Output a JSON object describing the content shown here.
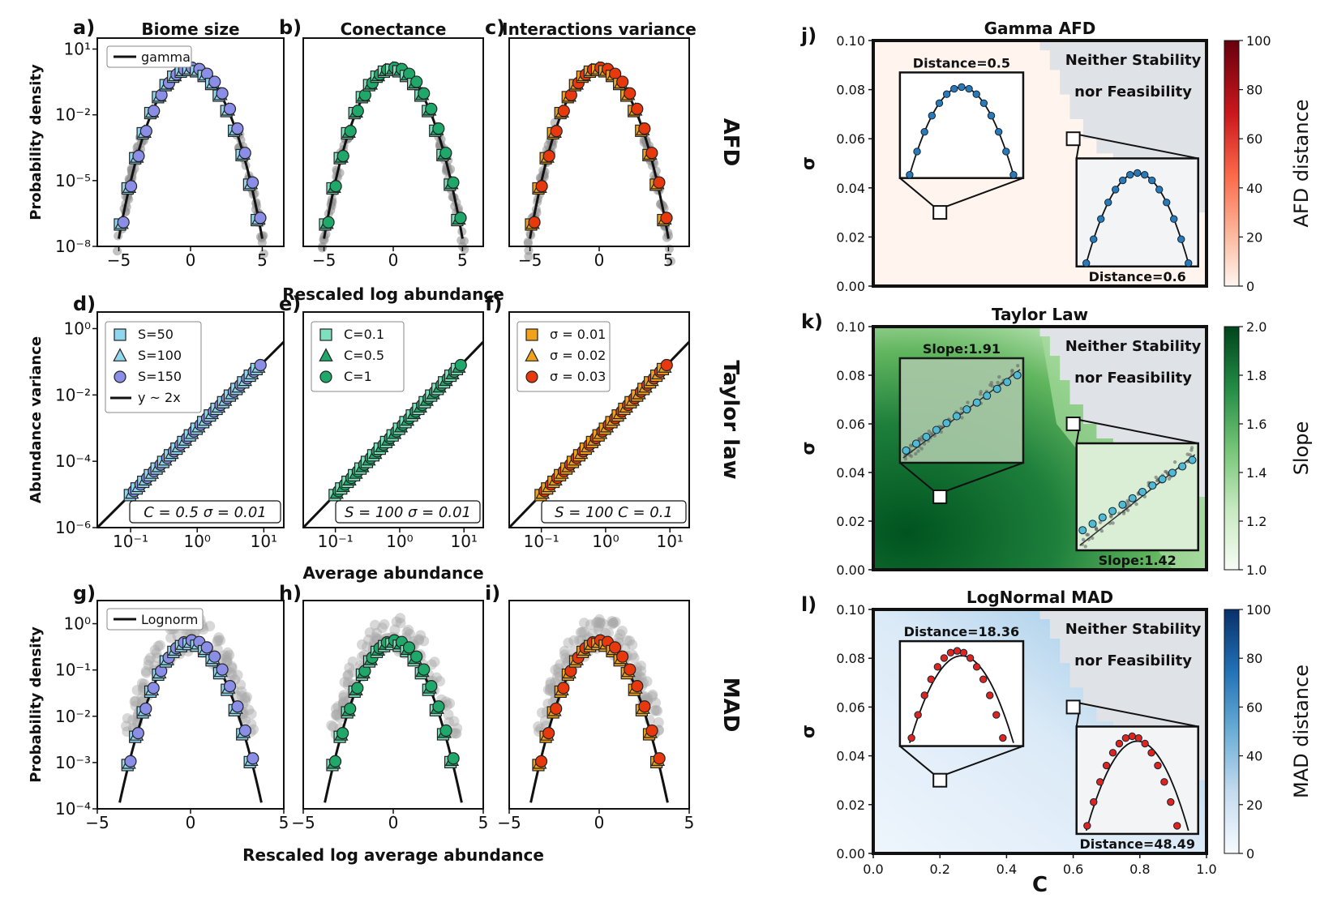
{
  "afd_row": {
    "panel_letters": [
      "a)",
      "b)",
      "c)"
    ],
    "column_titles": [
      "Biome size",
      "Conectance",
      "Interactions variance"
    ],
    "row_label": "AFD",
    "ylabel": "Probability density",
    "xlabel": "Rescaled log abundance",
    "legend": "gamma",
    "x_ticks": [
      "−5",
      "0",
      "5"
    ],
    "y_ticks": [
      "10¹",
      "10⁻²",
      "10⁻⁵",
      "10⁻⁸"
    ]
  },
  "taylor_row": {
    "panel_letters": [
      "d)",
      "e)",
      "f)"
    ],
    "row_label": "Taylor law",
    "ylabel": "Abundance variance",
    "xlabel": "Average abundance",
    "x_ticks": [
      "10⁻¹",
      "10⁰",
      "10¹"
    ],
    "y_ticks": [
      "10⁰",
      "10⁻²",
      "10⁻⁴",
      "10⁻⁶"
    ],
    "legends": [
      [
        "S=50",
        "S=100",
        "S=150",
        "y ~ 2x"
      ],
      [
        "C=0.1",
        "C=0.5",
        "C=1"
      ],
      [
        "σ = 0.01",
        "σ = 0.02",
        "σ = 0.03"
      ]
    ],
    "fixed_params": [
      "C = 0.5    σ = 0.01",
      "S = 100   σ = 0.01",
      "S = 100   C = 0.1"
    ]
  },
  "mad_row": {
    "panel_letters": [
      "g)",
      "h)",
      "i)"
    ],
    "row_label": "MAD",
    "ylabel": "Probability density",
    "xlabel": "Rescaled log average abundance",
    "legend": "Lognorm",
    "x_ticks": [
      "−5",
      "0",
      "5"
    ],
    "y_ticks": [
      "10⁰",
      "10⁻¹",
      "10⁻²",
      "10⁻³",
      "10⁻⁴"
    ]
  },
  "heatmaps": {
    "panel_letters": [
      "j)",
      "k)",
      "l)"
    ],
    "titles": [
      "Gamma AFD",
      "Taylor Law",
      "LogNormal MAD"
    ],
    "ylabel": "σ",
    "xlabel": "C",
    "y_ticks": [
      "0.10",
      "0.08",
      "0.06",
      "0.04",
      "0.02",
      "0.00"
    ],
    "x_ticks": [
      "0.0",
      "0.2",
      "0.4",
      "0.6",
      "0.8",
      "1.0"
    ],
    "region_label_1": "Neither Stability",
    "region_label_2": "nor Feasibility",
    "inset_labels": [
      [
        "Distance=0.5",
        "Distance=0.6"
      ],
      [
        "Slope:1.91",
        "Slope:1.42"
      ],
      [
        "Distance=18.36",
        "Distance=48.49"
      ]
    ],
    "colorbars": [
      {
        "label": "AFD distance",
        "ticks": [
          "100",
          "80",
          "60",
          "40",
          "20",
          "0"
        ],
        "low": "#fff5f0",
        "high": "#67000d"
      },
      {
        "label": "Slope",
        "ticks": [
          "2.0",
          "1.8",
          "1.6",
          "1.4",
          "1.2",
          "1.0"
        ],
        "low": "#f7fcf5",
        "high": "#00441b"
      },
      {
        "label": "MAD distance",
        "ticks": [
          "100",
          "80",
          "60",
          "40",
          "20",
          "0"
        ],
        "low": "#f7fbff",
        "high": "#08306b"
      }
    ]
  },
  "colors": {
    "blue_series": "#8a8ee6",
    "light_blue_series": "#8fd6ee",
    "green_series": "#1fa86a",
    "light_green_series": "#7fe0c0",
    "red_series": "#e8380d",
    "orange_series": "#f2a21a",
    "gray_data": "#8f8f8f"
  },
  "chart_data": [
    {
      "type": "scatter",
      "panel": "AFD",
      "model": "gamma",
      "x": [
        -5,
        -4,
        -3,
        -2,
        -1,
        0,
        1,
        2,
        3,
        4,
        5
      ],
      "y_log10": [
        -6.4,
        -4.3,
        -2.6,
        -1.2,
        -0.3,
        0.1,
        -0.3,
        -1.2,
        -2.6,
        -4.3,
        -6.4
      ],
      "xlim": [
        -6.5,
        6.5
      ],
      "ylim_log10": [
        -8,
        1.5
      ]
    },
    {
      "type": "scatter",
      "panel": "Taylor law",
      "model": "y ~ 2x",
      "x_log10": [
        -1,
        0,
        1
      ],
      "y_log10": [
        -5,
        -3,
        -1
      ],
      "xlim_log10": [
        -1.5,
        1.3
      ],
      "ylim_log10": [
        -6,
        0.5
      ]
    },
    {
      "type": "scatter",
      "panel": "MAD",
      "model": "Lognorm",
      "x": [
        -3.5,
        -2.5,
        -1.5,
        -0.5,
        0,
        0.5,
        1.5,
        2.5,
        3.5
      ],
      "y_log10": [
        -3.1,
        -2.1,
        -1.1,
        -0.5,
        -0.4,
        -0.5,
        -1.1,
        -2.1,
        -3.1
      ],
      "xlim": [
        -5,
        5
      ],
      "ylim_log10": [
        -4,
        0.5
      ]
    },
    {
      "type": "heatmap",
      "panel": "Gamma AFD",
      "xlim": [
        0,
        1
      ],
      "ylim": [
        0,
        0.1
      ],
      "value_range": [
        0,
        100
      ],
      "markers": [
        {
          "C": 0.2,
          "sigma": 0.03
        },
        {
          "C": 0.6,
          "sigma": 0.06
        }
      ]
    },
    {
      "type": "heatmap",
      "panel": "Taylor Law",
      "xlim": [
        0,
        1
      ],
      "ylim": [
        0,
        0.1
      ],
      "value_range": [
        1.0,
        2.0
      ],
      "markers": [
        {
          "C": 0.2,
          "sigma": 0.03
        },
        {
          "C": 0.6,
          "sigma": 0.06
        }
      ]
    },
    {
      "type": "heatmap",
      "panel": "LogNormal MAD",
      "xlim": [
        0,
        1
      ],
      "ylim": [
        0,
        0.1
      ],
      "value_range": [
        0,
        100
      ],
      "markers": [
        {
          "C": 0.2,
          "sigma": 0.03
        },
        {
          "C": 0.6,
          "sigma": 0.06
        }
      ]
    }
  ]
}
